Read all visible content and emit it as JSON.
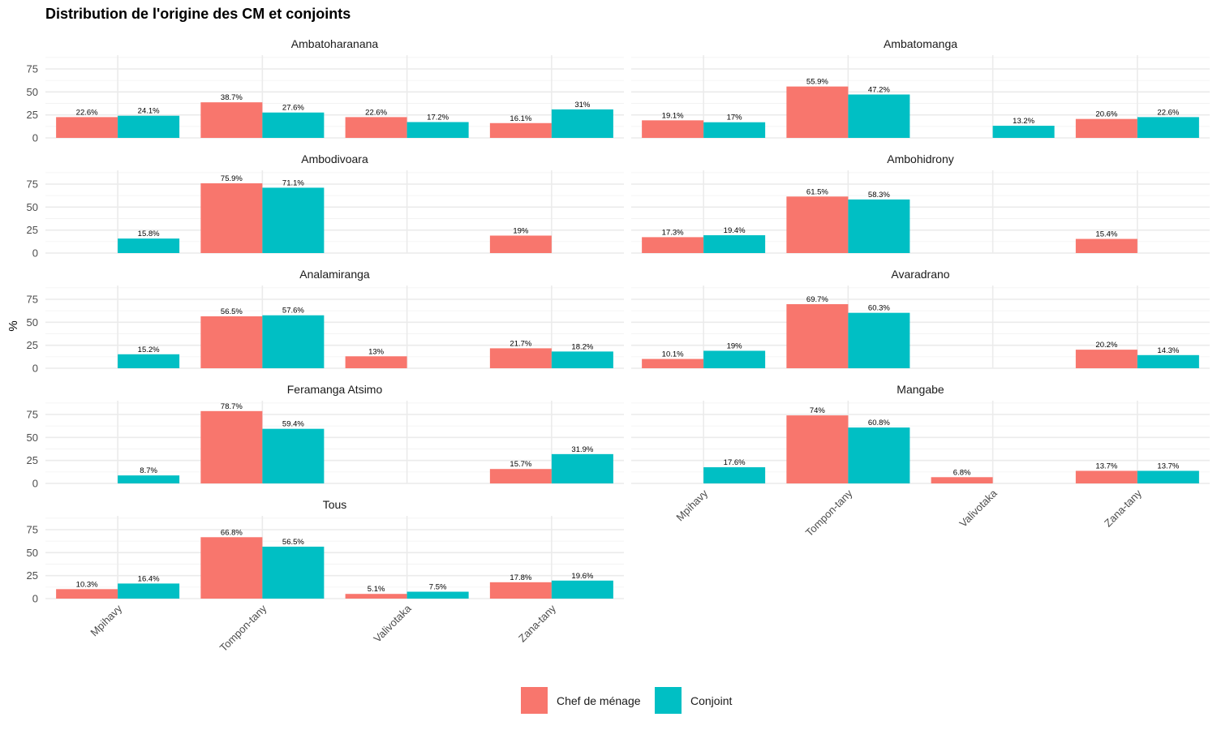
{
  "chart_data": {
    "type": "bar",
    "title": "Distribution de l'origine des CM et conjoints",
    "xlabel": "",
    "ylabel": "%",
    "ylim": [
      0,
      90
    ],
    "yticks": [
      0,
      25,
      50,
      75
    ],
    "grid": true,
    "categories": [
      "Mpihavy",
      "Tompon-tany",
      "Valivotaka",
      "Zana-tany"
    ],
    "series_names": [
      "Chef de ménage",
      "Conjoint"
    ],
    "colors": {
      "Chef de ménage": "#F8766D",
      "Conjoint": "#00BFC4"
    },
    "legend_position": "bottom",
    "panels": [
      {
        "name": "Ambatoharanana",
        "series": [
          {
            "name": "Chef de ménage",
            "values": [
              22.6,
              38.7,
              22.6,
              16.1
            ],
            "labels": [
              "22.6%",
              "38.7%",
              "22.6%",
              "16.1%"
            ]
          },
          {
            "name": "Conjoint",
            "values": [
              24.1,
              27.6,
              17.2,
              31
            ],
            "labels": [
              "24.1%",
              "27.6%",
              "17.2%",
              "31%"
            ]
          }
        ]
      },
      {
        "name": "Ambatomanga",
        "series": [
          {
            "name": "Chef de ménage",
            "values": [
              19.1,
              55.9,
              null,
              20.6
            ],
            "labels": [
              "19.1%",
              "55.9%",
              null,
              "20.6%"
            ]
          },
          {
            "name": "Conjoint",
            "values": [
              17,
              47.2,
              13.2,
              22.6
            ],
            "labels": [
              "17%",
              "47.2%",
              "13.2%",
              "22.6%"
            ]
          }
        ]
      },
      {
        "name": "Ambodivoara",
        "series": [
          {
            "name": "Chef de ménage",
            "values": [
              null,
              75.9,
              null,
              19
            ],
            "labels": [
              null,
              "75.9%",
              null,
              "19%"
            ]
          },
          {
            "name": "Conjoint",
            "values": [
              15.8,
              71.1,
              null,
              null
            ],
            "labels": [
              "15.8%",
              "71.1%",
              null,
              null
            ]
          }
        ]
      },
      {
        "name": "Ambohidrony",
        "series": [
          {
            "name": "Chef de ménage",
            "values": [
              17.3,
              61.5,
              null,
              15.4
            ],
            "labels": [
              "17.3%",
              "61.5%",
              null,
              "15.4%"
            ]
          },
          {
            "name": "Conjoint",
            "values": [
              19.4,
              58.3,
              null,
              null
            ],
            "labels": [
              "19.4%",
              "58.3%",
              null,
              null
            ]
          }
        ]
      },
      {
        "name": "Analamiranga",
        "series": [
          {
            "name": "Chef de ménage",
            "values": [
              null,
              56.5,
              13,
              21.7
            ],
            "labels": [
              null,
              "56.5%",
              "13%",
              "21.7%"
            ]
          },
          {
            "name": "Conjoint",
            "values": [
              15.2,
              57.6,
              null,
              18.2
            ],
            "labels": [
              "15.2%",
              "57.6%",
              null,
              "18.2%"
            ]
          }
        ]
      },
      {
        "name": "Avaradrano",
        "series": [
          {
            "name": "Chef de ménage",
            "values": [
              10.1,
              69.7,
              null,
              20.2
            ],
            "labels": [
              "10.1%",
              "69.7%",
              null,
              "20.2%"
            ]
          },
          {
            "name": "Conjoint",
            "values": [
              19,
              60.3,
              null,
              14.3
            ],
            "labels": [
              "19%",
              "60.3%",
              null,
              "14.3%"
            ]
          }
        ]
      },
      {
        "name": "Feramanga Atsimo",
        "series": [
          {
            "name": "Chef de ménage",
            "values": [
              null,
              78.7,
              null,
              15.7
            ],
            "labels": [
              null,
              "78.7%",
              null,
              "15.7%"
            ]
          },
          {
            "name": "Conjoint",
            "values": [
              8.7,
              59.4,
              null,
              31.9
            ],
            "labels": [
              "8.7%",
              "59.4%",
              null,
              "31.9%"
            ]
          }
        ]
      },
      {
        "name": "Mangabe",
        "series": [
          {
            "name": "Chef de ménage",
            "values": [
              null,
              74,
              6.8,
              13.7
            ],
            "labels": [
              null,
              "74%",
              "6.8%",
              "13.7%"
            ]
          },
          {
            "name": "Conjoint",
            "values": [
              17.6,
              60.8,
              null,
              13.7
            ],
            "labels": [
              "17.6%",
              "60.8%",
              null,
              "13.7%"
            ]
          }
        ]
      },
      {
        "name": "Tous",
        "series": [
          {
            "name": "Chef de ménage",
            "values": [
              10.3,
              66.8,
              5.1,
              17.8
            ],
            "labels": [
              "10.3%",
              "66.8%",
              "5.1%",
              "17.8%"
            ]
          },
          {
            "name": "Conjoint",
            "values": [
              16.4,
              56.5,
              7.5,
              19.6
            ],
            "labels": [
              "16.4%",
              "56.5%",
              "7.5%",
              "19.6%"
            ]
          }
        ]
      }
    ]
  }
}
